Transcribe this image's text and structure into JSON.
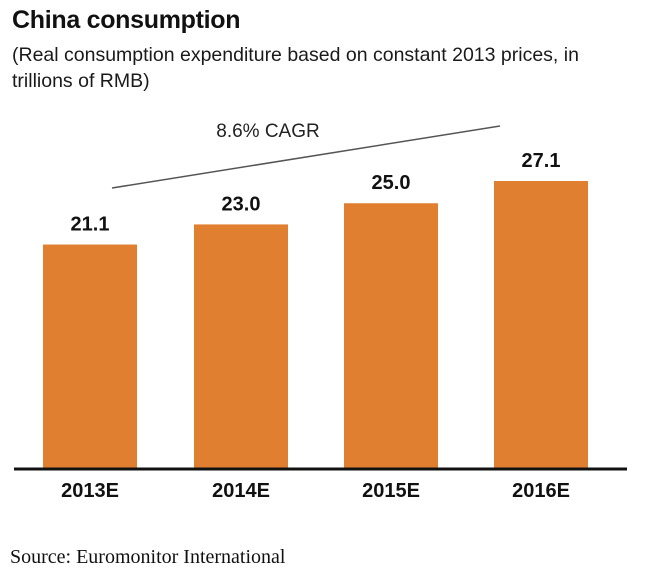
{
  "header": {
    "title": "China consumption",
    "subtitle": "(Real consumption expenditure based on constant 2013 prices, in trillions of RMB)"
  },
  "annotation": {
    "cagr_label": "8.6% CAGR"
  },
  "footer": {
    "source": "Source: Euromonitor International"
  },
  "chart_data": {
    "type": "bar",
    "title": "China consumption",
    "subtitle": "(Real consumption expenditure based on constant 2013 prices, in trillions of RMB)",
    "categories": [
      "2013E",
      "2014E",
      "2015E",
      "2016E"
    ],
    "values": [
      21.1,
      23.0,
      25.0,
      27.1
    ],
    "value_labels": [
      "21.1",
      "23.0",
      "25.0",
      "27.1"
    ],
    "xlabel": "",
    "ylabel": "",
    "ylim": [
      0,
      27.1
    ],
    "grid": false,
    "legend": "none",
    "annotations": [
      "8.6% CAGR"
    ],
    "colors": {
      "bar": "#E17F30",
      "axis": "#111111",
      "trend_line": "#555555"
    }
  }
}
